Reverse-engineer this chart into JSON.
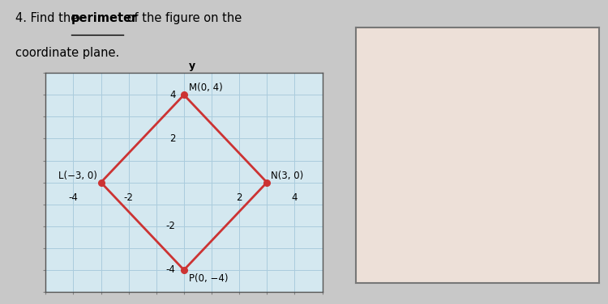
{
  "points": {
    "M": [
      0,
      4
    ],
    "L": [
      -3,
      0
    ],
    "N": [
      3,
      0
    ],
    "P": [
      0,
      -4
    ]
  },
  "point_labels": {
    "M": "M(0, 4)",
    "L": "L(−3, 0)",
    "N": "N(3, 0)",
    "P": "P(0, −4)"
  },
  "diamond_color": "#cc3333",
  "dot_color": "#cc3333",
  "grid_color": "#aaccdd",
  "bg_color": "#d4e8f0",
  "xlim": [
    -5,
    5
  ],
  "ylim": [
    -5,
    5
  ],
  "xticks": [
    -4,
    -2,
    0,
    2,
    4
  ],
  "yticks": [
    -4,
    -2,
    0,
    2,
    4
  ],
  "right_box_bg": "#ede0d8",
  "right_box_border": "#777777",
  "page_bg": "#c8c8c8",
  "white_bg": "#ffffff"
}
